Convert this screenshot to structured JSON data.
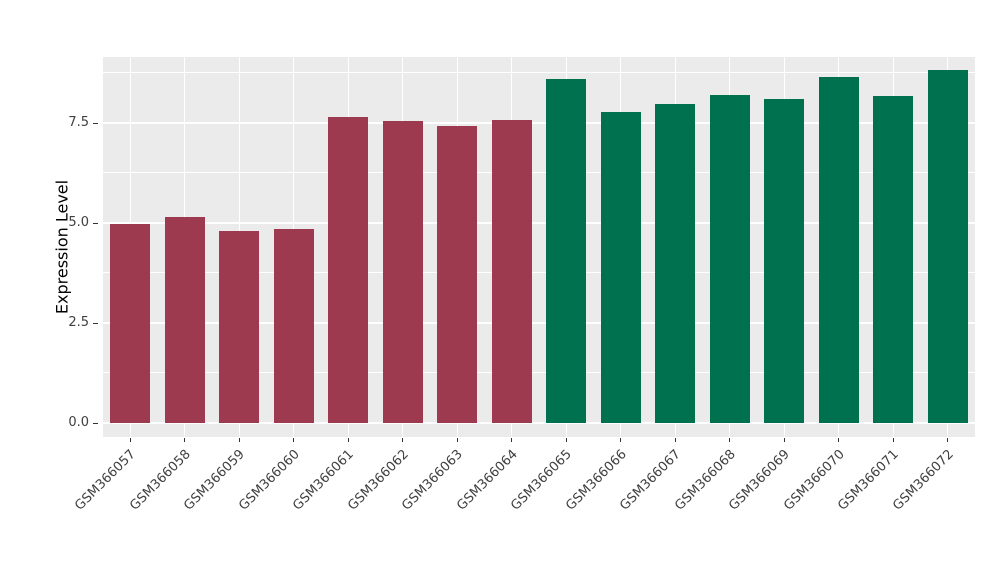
{
  "chart_data": {
    "type": "bar",
    "title": "",
    "xlabel": "",
    "ylabel": "Expression Level",
    "categories": [
      "GSM366057",
      "GSM366058",
      "GSM366059",
      "GSM366060",
      "GSM366061",
      "GSM366062",
      "GSM366063",
      "GSM366064",
      "GSM366065",
      "GSM366066",
      "GSM366067",
      "GSM366068",
      "GSM366069",
      "GSM366070",
      "GSM366071",
      "GSM366072"
    ],
    "values": [
      4.98,
      5.15,
      4.8,
      4.85,
      7.65,
      7.55,
      7.43,
      7.58,
      8.6,
      7.78,
      7.98,
      8.2,
      8.1,
      8.65,
      8.18,
      8.83
    ],
    "bar_colors": [
      "#9E3A4F",
      "#9E3A4F",
      "#9E3A4F",
      "#9E3A4F",
      "#9E3A4F",
      "#9E3A4F",
      "#9E3A4F",
      "#9E3A4F",
      "#00714E",
      "#00714E",
      "#00714E",
      "#00714E",
      "#00714E",
      "#00714E",
      "#00714E",
      "#00714E"
    ],
    "group_colors": {
      "group1_red": "#9E3A4F",
      "group2_green": "#00714E"
    },
    "ylim": [
      0,
      9.2
    ],
    "yticks": [
      0,
      2.5,
      5,
      7.5
    ],
    "ytick_labels": [
      "0.0",
      "2.5",
      "5.0",
      "7.5"
    ],
    "minor_gridlines": [
      1.25,
      3.75,
      6.25,
      8.75
    ],
    "panel_bg": "#EBEBEB",
    "grid_color": "#FFFFFF",
    "tick_text_color": "#404040",
    "axis_title_color": "#000000",
    "tick_mark_color": "#333333",
    "legend": "none",
    "grid": "on"
  }
}
